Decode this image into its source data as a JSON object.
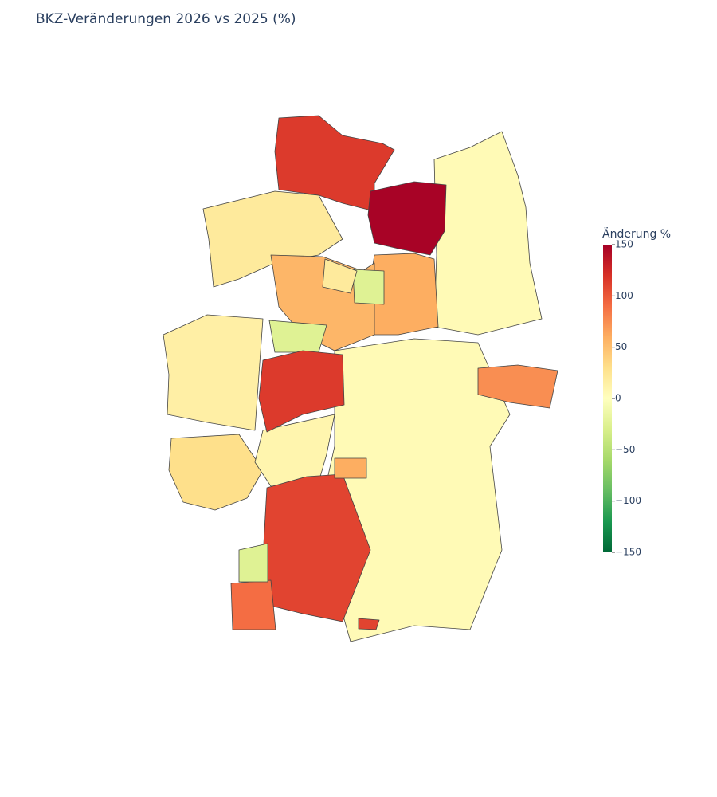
{
  "chart_data": {
    "type": "choropleth",
    "title": "BKZ-Veränderungen 2026 vs 2025 (%)",
    "colorbar_title": "Änderung %",
    "zlim": [
      -150,
      150
    ],
    "zticks": [
      {
        "value": -150,
        "label": "−150"
      },
      {
        "value": -100,
        "label": "−100"
      },
      {
        "value": -50,
        "label": "−50"
      },
      0,
      50,
      100,
      150
    ],
    "colorscale": [
      [
        0,
        "#006837"
      ],
      [
        0.1,
        "#1a9850"
      ],
      [
        0.2,
        "#66bd63"
      ],
      [
        0.3,
        "#a6d96a"
      ],
      [
        0.4,
        "#d9ef8b"
      ],
      [
        0.5,
        "#ffffbf"
      ],
      [
        0.6,
        "#fee08b"
      ],
      [
        0.7,
        "#fdae61"
      ],
      [
        0.8,
        "#f46d43"
      ],
      [
        0.9,
        "#d73027"
      ],
      [
        1,
        "#a50026"
      ]
    ],
    "values": [
      5,
      5,
      20,
      15,
      30,
      10,
      115,
      148,
      60,
      55,
      -25,
      -25,
      20,
      115,
      75,
      110,
      90,
      -25,
      110,
      60
    ]
  }
}
